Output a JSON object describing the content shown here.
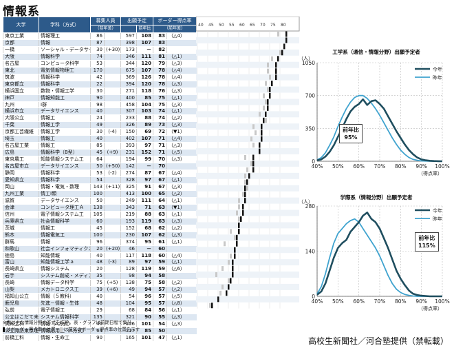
{
  "title": "情報系",
  "headers": {
    "univ": "大学",
    "dept": "学科（方式）",
    "capacity": "募集人員",
    "capacity_sub": "（前年差）",
    "applicants": "出願予定",
    "applicants_sub1": "",
    "applicants_sub2": "前年比",
    "border": "ボーダー得点率",
    "border_sub": "（前年差）"
  },
  "scale_ticks": [
    "40",
    "45",
    "50",
    "55",
    "60",
    "65",
    "70",
    "75",
    "80"
  ],
  "rows": [
    {
      "u": "東京工業",
      "d": "情報理工",
      "c": "86",
      "cd": "",
      "a": "597",
      "r": "108",
      "b": "83",
      "bd": "（△4）",
      "cur": 83,
      "prev": 79,
      "sm": false
    },
    {
      "u": "京都",
      "d": "情報",
      "c": "87",
      "cd": "",
      "a": "398",
      "r": "107",
      "b": "83",
      "bd": "",
      "cur": 83,
      "prev": 83,
      "sm": false
    },
    {
      "u": "一橋",
      "d": "ソーシャル・データサイエンス",
      "c": "30",
      "cd": "(+30)",
      "a": "173",
      "r": "－",
      "b": "82",
      "bd": "",
      "cur": 82,
      "prev": null,
      "sm": true
    },
    {
      "u": "大阪",
      "d": "情報科学",
      "c": "74",
      "cd": "",
      "a": "346",
      "r": "111",
      "b": "81",
      "bd": "（△1）",
      "cur": 81,
      "prev": 80,
      "sm": false
    },
    {
      "u": "名古屋",
      "d": "コンピュータ科学",
      "c": "53",
      "cd": "",
      "a": "344",
      "r": "120",
      "b": "79",
      "bd": "（△3）",
      "cur": 79,
      "prev": 76,
      "sm": false
    },
    {
      "u": "東北",
      "d": "電気情報物理工",
      "c": "170",
      "cd": "",
      "a": "675",
      "r": "107",
      "b": "78",
      "bd": "（△4）",
      "cur": 78,
      "prev": 74,
      "sm": false
    },
    {
      "u": "筑波",
      "d": "情報科学",
      "c": "42",
      "cd": "",
      "a": "369",
      "r": "126",
      "b": "78",
      "bd": "（△4）",
      "cur": 78,
      "prev": 74,
      "sm": false
    },
    {
      "u": "東京都立",
      "d": "情報科学",
      "c": "22",
      "cd": "",
      "a": "394",
      "r": "120",
      "b": "78",
      "bd": "（△3）",
      "cur": 78,
      "prev": 75,
      "sm": false
    },
    {
      "u": "横浜国立",
      "d": "数物・情報工学",
      "c": "30",
      "cd": "",
      "a": "271",
      "r": "118",
      "b": "76",
      "bd": "（△3）",
      "cur": 76,
      "prev": 73,
      "sm": false
    },
    {
      "u": "神戸",
      "d": "情報知能工",
      "c": "90",
      "cd": "",
      "a": "400",
      "r": "85",
      "b": "75",
      "bd": "（△1）",
      "cur": 75,
      "prev": 74,
      "sm": false
    },
    {
      "u": "九州",
      "d": "Ⅰ群",
      "c": "98",
      "cd": "",
      "a": "458",
      "r": "104",
      "b": "75",
      "bd": "（△3）",
      "cur": 75,
      "prev": 72,
      "sm": false
    },
    {
      "u": "横浜市立",
      "d": "データサイエンス",
      "c": "40",
      "cd": "",
      "a": "307",
      "r": "103",
      "b": "74",
      "bd": "（△1）",
      "cur": 74,
      "prev": 73,
      "sm": false
    },
    {
      "u": "大阪公立",
      "d": "情報工",
      "c": "24",
      "cd": "",
      "a": "233",
      "r": "88",
      "b": "74",
      "bd": "（△2）",
      "cur": 74,
      "prev": 72,
      "sm": false
    },
    {
      "u": "千葉",
      "d": "情報工学",
      "c": "49",
      "cd": "",
      "a": "326",
      "r": "89",
      "b": "73",
      "bd": "（△3）",
      "cur": 73,
      "prev": 70,
      "sm": false
    },
    {
      "u": "京都工芸繊維",
      "d": "情報工学",
      "c": "30",
      "cd": "(-4)",
      "a": "150",
      "r": "69",
      "b": "72",
      "bd": "（▼1）",
      "cur": 72,
      "prev": 73,
      "sm": false
    },
    {
      "u": "埼玉",
      "d": "情報工",
      "c": "40",
      "cd": "",
      "a": "402",
      "r": "107",
      "b": "71",
      "bd": "（△4）",
      "cur": 71,
      "prev": 67,
      "sm": false
    },
    {
      "u": "名古屋工業",
      "d": "情報工",
      "c": "85",
      "cd": "",
      "a": "393",
      "r": "97",
      "b": "71",
      "bd": "（△3）",
      "cur": 71,
      "prev": 68,
      "sm": false
    },
    {
      "u": "広島",
      "d": "情報科学（B型）",
      "c": "45",
      "cd": "(+9)",
      "a": "231",
      "r": "152",
      "b": "71",
      "bd": "（△5）",
      "cur": 71,
      "prev": 66,
      "sm": false
    },
    {
      "u": "東京農工",
      "d": "知能情報システム工",
      "c": "64",
      "cd": "",
      "a": "194",
      "r": "99",
      "b": "70",
      "bd": "（△3）",
      "cur": 70,
      "prev": 67,
      "sm": false
    },
    {
      "u": "名古屋市立",
      "d": "データサイエンス",
      "c": "50",
      "cd": "(+50)",
      "a": "142",
      "r": "－",
      "b": "70",
      "bd": "",
      "cur": 70,
      "prev": null,
      "sm": false
    },
    {
      "u": "静岡",
      "d": "情報科学",
      "c": "53",
      "cd": "(-2)",
      "a": "274",
      "r": "87",
      "b": "67",
      "bd": "（△4）",
      "cur": 67,
      "prev": 63,
      "sm": false
    },
    {
      "u": "愛知県立",
      "d": "情報科学",
      "c": "54",
      "cd": "",
      "a": "328",
      "r": "97",
      "b": "67",
      "bd": "（△1）",
      "cur": 67,
      "prev": 66,
      "sm": false
    },
    {
      "u": "岡山",
      "d": "情報・電気・数理",
      "c": "143",
      "cd": "(+11)",
      "a": "325",
      "r": "91",
      "b": "67",
      "bd": "（△3）",
      "cur": 67,
      "prev": 64,
      "sm": false
    },
    {
      "u": "九州工業",
      "d": "情工Ⅰ類",
      "c": "100",
      "cd": "",
      "a": "413",
      "r": "100",
      "b": "65",
      "bd": "（△2）",
      "cur": 65,
      "prev": 63,
      "sm": false
    },
    {
      "u": "滋賀",
      "d": "データサイエンス",
      "c": "50",
      "cd": "",
      "a": "249",
      "r": "111",
      "b": "64",
      "bd": "（△1）",
      "cur": 64,
      "prev": 63,
      "sm": false
    },
    {
      "u": "会津",
      "d": "コンピュータ理工Ａ",
      "c": "138",
      "cd": "",
      "a": "343",
      "r": "71",
      "b": "63",
      "bd": "（▼1）",
      "cur": 63,
      "prev": 64,
      "sm": false
    },
    {
      "u": "信州",
      "d": "電子情報システム工",
      "c": "105",
      "cd": "",
      "a": "219",
      "r": "88",
      "b": "63",
      "bd": "（△1）",
      "cur": 63,
      "prev": 62,
      "sm": false
    },
    {
      "u": "兵庫県立",
      "d": "社会情報科学",
      "c": "60",
      "cd": "",
      "a": "193",
      "r": "119",
      "b": "63",
      "bd": "（△3）",
      "cur": 63,
      "prev": 60,
      "sm": false
    },
    {
      "u": "茨城",
      "d": "情報工",
      "c": "45",
      "cd": "",
      "a": "152",
      "r": "68",
      "b": "62",
      "bd": "（△2）",
      "cur": 62,
      "prev": 60,
      "sm": false
    },
    {
      "u": "熊本",
      "d": "情報電気工",
      "c": "100",
      "cd": "",
      "a": "230",
      "r": "107",
      "b": "62",
      "bd": "（△3）",
      "cur": 62,
      "prev": 59,
      "sm": false
    },
    {
      "u": "群馬",
      "d": "情報",
      "c": "96",
      "cd": "",
      "a": "374",
      "r": "95",
      "b": "61",
      "bd": "（△1）",
      "cur": 61,
      "prev": 60,
      "sm": false
    },
    {
      "u": "和歌山",
      "d": "社会インフォマティクス",
      "c": "20",
      "cd": "(+20)",
      "a": "46",
      "r": "－",
      "b": "60",
      "bd": "",
      "cur": 60,
      "prev": null,
      "sm": true
    },
    {
      "u": "徳島",
      "d": "知能情報",
      "c": "40",
      "cd": "",
      "a": "117",
      "r": "118",
      "b": "60",
      "bd": "（△4）",
      "cur": 60,
      "prev": 56,
      "sm": false
    },
    {
      "u": "富山",
      "d": "知能情報工学ａ",
      "c": "48",
      "cd": "(-3)",
      "a": "89",
      "r": "97",
      "b": "59",
      "bd": "（△1）",
      "cur": 59,
      "prev": 58,
      "sm": false
    },
    {
      "u": "長崎県立",
      "d": "情報システム",
      "c": "20",
      "cd": "",
      "a": "128",
      "r": "119",
      "b": "59",
      "bd": "（△6）",
      "cur": 59,
      "prev": 53,
      "sm": false
    },
    {
      "u": "岩手",
      "d": "システム創成・メディア情報",
      "c": "35",
      "cd": "",
      "a": "98",
      "r": "94",
      "b": "58",
      "bd": "",
      "cur": 58,
      "prev": 58,
      "sm": true
    },
    {
      "u": "長崎",
      "d": "情報データ科学",
      "c": "75",
      "cd": "(+5)",
      "a": "138",
      "r": "75",
      "b": "58",
      "bd": "（△2）",
      "cur": 58,
      "prev": 56,
      "sm": false
    },
    {
      "u": "山梨",
      "d": "メカトロニクス工",
      "c": "39",
      "cd": "(+6)",
      "a": "49",
      "r": "94",
      "b": "57",
      "bd": "（△2）",
      "cur": 57,
      "prev": 55,
      "sm": false
    },
    {
      "u": "福知山公立",
      "d": "情報（５教科）",
      "c": "40",
      "cd": "",
      "a": "54",
      "r": "96",
      "b": "57",
      "bd": "（△5）",
      "cur": 57,
      "prev": 52,
      "sm": false
    },
    {
      "u": "鹿児島",
      "d": "先進－情報・生体",
      "c": "48",
      "cd": "",
      "a": "104",
      "r": "95",
      "b": "57",
      "bd": "（△8）",
      "cur": 57,
      "prev": 49,
      "sm": false
    },
    {
      "u": "弘前",
      "d": "電子情報工",
      "c": "29",
      "cd": "",
      "a": "68",
      "r": "84",
      "b": "56",
      "bd": "（△1）",
      "cur": 56,
      "prev": 55,
      "sm": false
    },
    {
      "u": "公立はこだて未来",
      "d": "システム情報科学",
      "c": "135",
      "cd": "",
      "a": "321",
      "r": "90",
      "b": "55",
      "bd": "（△3）",
      "cur": 55,
      "prev": 52,
      "sm": false
    },
    {
      "u": "高知工科",
      "d": "情報（A方式）",
      "c": "40",
      "cd": "",
      "a": "106",
      "r": "101",
      "b": "54",
      "bd": "（△3）",
      "cur": 54,
      "prev": 51,
      "sm": false
    },
    {
      "u": "公立諏訪東京理科",
      "d": "情報応用工（A方式）",
      "c": "64",
      "cd": "",
      "a": "117",
      "r": "85",
      "b": "50",
      "bd": "",
      "cur": 50,
      "prev": 50,
      "sm": true
    },
    {
      "u": "前橋工科",
      "d": "情報・生命工",
      "c": "90",
      "cd": "",
      "a": "165",
      "r": "101",
      "b": "47",
      "bd": "（△1）",
      "cur": 47,
      "prev": 46,
      "sm": false
    }
  ],
  "note1": "※表は主な情報分野の方式を抜粋。表・グラフは前期日程で集計",
  "note2_a": "はボーダー得点率の位置",
  "note2_b": "は前年のボーダー得点率の位置を示す",
  "credit": "高校生新聞社／河合塾提供（禁転載）",
  "chart_data": [
    {
      "type": "line",
      "title": "工学系（通信・情報分野）出願予定者",
      "ylabel": "（人）",
      "xlabel": "（得点率）",
      "x_tick_labels": [
        "40%",
        "50%",
        "60%",
        "70%",
        "80%",
        "90%",
        "100%"
      ],
      "y_tick_labels": [
        "0",
        "350",
        "700",
        "1050"
      ],
      "xlim": [
        40,
        100
      ],
      "ylim": [
        0,
        1050
      ],
      "annotation": {
        "label": "前年比",
        "value": "95%"
      },
      "series": [
        {
          "name": "今年",
          "color": "#1f4e5f",
          "x": [
            40,
            42,
            44,
            46,
            48,
            50,
            52,
            54,
            56,
            58,
            60,
            62,
            64,
            66,
            68,
            70,
            72,
            74,
            76,
            78,
            80,
            82,
            84,
            86,
            88,
            90,
            92,
            94,
            96,
            98,
            100
          ],
          "y": [
            10,
            20,
            50,
            100,
            170,
            260,
            350,
            450,
            530,
            580,
            610,
            660,
            600,
            640,
            650,
            610,
            560,
            480,
            400,
            320,
            250,
            180,
            120,
            75,
            40,
            20,
            10,
            5,
            2,
            1,
            0
          ]
        },
        {
          "name": "昨年",
          "color": "#3fa3cf",
          "x": [
            40,
            42,
            44,
            46,
            48,
            50,
            52,
            54,
            56,
            58,
            60,
            62,
            64,
            66,
            68,
            70,
            72,
            74,
            76,
            78,
            80,
            82,
            84,
            86,
            88,
            90,
            92,
            94,
            96,
            98,
            100
          ],
          "y": [
            15,
            40,
            90,
            170,
            260,
            370,
            470,
            560,
            630,
            680,
            700,
            700,
            670,
            620,
            560,
            490,
            410,
            330,
            250,
            180,
            120,
            75,
            40,
            20,
            10,
            4,
            2,
            1,
            0,
            0,
            0
          ]
        }
      ]
    },
    {
      "type": "line",
      "title": "学際系（情報分野）出願予定者",
      "ylabel": "（人）",
      "xlabel": "（得点率）",
      "x_tick_labels": [
        "40%",
        "50%",
        "60%",
        "70%",
        "80%",
        "90%",
        "100%"
      ],
      "y_tick_labels": [
        "0",
        "140",
        "280"
      ],
      "xlim": [
        40,
        100
      ],
      "ylim": [
        0,
        280
      ],
      "annotation": {
        "label": "前年比",
        "value": "115%"
      },
      "series": [
        {
          "name": "今年",
          "color": "#1f4e5f",
          "x": [
            40,
            42,
            44,
            46,
            48,
            50,
            52,
            54,
            56,
            58,
            60,
            62,
            64,
            66,
            68,
            70,
            72,
            74,
            76,
            78,
            80,
            82,
            84,
            86,
            88,
            90,
            92,
            94,
            96,
            98,
            100
          ],
          "y": [
            5,
            15,
            40,
            80,
            120,
            150,
            165,
            175,
            200,
            215,
            230,
            250,
            260,
            240,
            230,
            210,
            180,
            150,
            115,
            80,
            55,
            35,
            18,
            8,
            4,
            2,
            1,
            0,
            0,
            0,
            0
          ]
        },
        {
          "name": "昨年",
          "color": "#3fa3cf",
          "x": [
            40,
            42,
            44,
            46,
            48,
            50,
            52,
            54,
            56,
            58,
            60,
            62,
            64,
            66,
            68,
            70,
            72,
            74,
            76,
            78,
            80,
            82,
            84,
            86,
            88,
            90,
            92,
            94,
            96,
            98,
            100
          ],
          "y": [
            8,
            30,
            70,
            120,
            165,
            195,
            210,
            225,
            235,
            240,
            230,
            210,
            190,
            170,
            150,
            125,
            95,
            65,
            40,
            22,
            12,
            6,
            3,
            1,
            0,
            0,
            0,
            0,
            0,
            0,
            0
          ]
        }
      ]
    }
  ]
}
